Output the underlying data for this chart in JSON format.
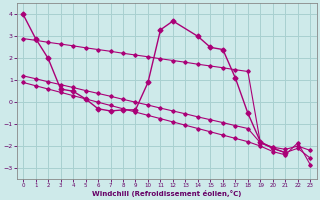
{
  "xlabel": "Windchill (Refroidissement éolien,°C)",
  "background_color": "#ceeaea",
  "grid_color": "#a8d0d0",
  "line_color": "#aa0077",
  "xlim": [
    -0.5,
    23.5
  ],
  "ylim": [
    -3.5,
    4.5
  ],
  "yticks": [
    -3,
    -2,
    -1,
    0,
    1,
    2,
    3,
    4
  ],
  "xticks": [
    0,
    1,
    2,
    3,
    4,
    5,
    6,
    7,
    8,
    9,
    10,
    11,
    12,
    13,
    14,
    15,
    16,
    17,
    18,
    19,
    20,
    21,
    22,
    23
  ],
  "series": [
    {
      "x": [
        0,
        1,
        2,
        3,
        4,
        5,
        6,
        7,
        8,
        9,
        10,
        11,
        12,
        14,
        15,
        16,
        17,
        18,
        19,
        20,
        21
      ],
      "y": [
        4.0,
        2.9,
        2.0,
        0.6,
        0.5,
        0.15,
        -0.3,
        -0.4,
        -0.35,
        -0.35,
        0.9,
        3.3,
        3.7,
        3.0,
        2.5,
        2.4,
        1.1,
        -0.5,
        -1.8,
        -2.1,
        -2.3
      ]
    },
    {
      "x": [
        0,
        1,
        2,
        3,
        4,
        5,
        6,
        7,
        8,
        9,
        10,
        11,
        12,
        13,
        14,
        15,
        16,
        17,
        18,
        19,
        20,
        21,
        22,
        23
      ],
      "y": [
        2.9,
        2.82,
        2.73,
        2.65,
        2.57,
        2.48,
        2.4,
        2.32,
        2.23,
        2.15,
        2.07,
        1.98,
        1.9,
        1.82,
        1.73,
        1.65,
        1.57,
        1.48,
        1.4,
        -1.85,
        -2.05,
        -2.15,
        -2.0,
        -2.2
      ]
    },
    {
      "x": [
        0,
        1,
        2,
        3,
        4,
        5,
        6,
        7,
        8,
        9,
        10,
        11,
        12,
        13,
        14,
        15,
        16,
        17,
        18,
        19,
        20,
        21,
        22,
        23
      ],
      "y": [
        1.2,
        1.07,
        0.93,
        0.8,
        0.67,
        0.53,
        0.4,
        0.27,
        0.13,
        0.0,
        -0.13,
        -0.27,
        -0.4,
        -0.53,
        -0.67,
        -0.8,
        -0.93,
        -1.07,
        -1.2,
        -1.85,
        -2.1,
        -2.3,
        -2.1,
        -2.55
      ]
    },
    {
      "x": [
        0,
        1,
        2,
        3,
        4,
        5,
        6,
        7,
        8,
        9,
        10,
        11,
        12,
        13,
        14,
        15,
        16,
        17,
        18,
        19,
        20,
        21,
        22,
        23
      ],
      "y": [
        0.9,
        0.75,
        0.6,
        0.45,
        0.3,
        0.15,
        0.0,
        -0.15,
        -0.3,
        -0.45,
        -0.6,
        -0.75,
        -0.9,
        -1.05,
        -1.2,
        -1.35,
        -1.5,
        -1.65,
        -1.8,
        -2.0,
        -2.25,
        -2.4,
        -1.85,
        -2.85
      ]
    }
  ]
}
